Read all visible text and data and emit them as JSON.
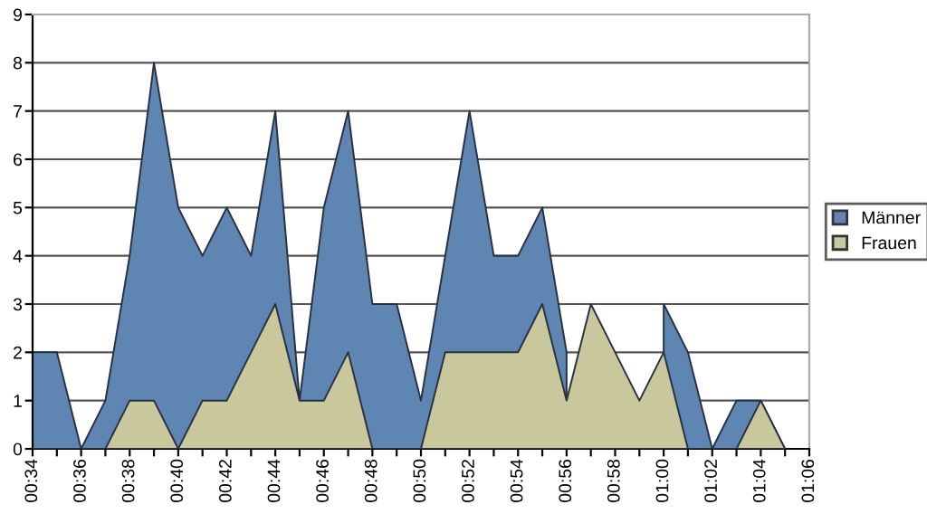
{
  "chart_data": {
    "type": "area",
    "categories": [
      "00:34",
      null,
      "00:36",
      null,
      "00:38",
      null,
      "00:40",
      null,
      "00:42",
      null,
      "00:44",
      null,
      "00:46",
      null,
      "00:48",
      null,
      "00:50",
      null,
      "00:52",
      null,
      "00:54",
      null,
      "00:56",
      null,
      "00:58",
      null,
      "01:00",
      null,
      "01:02",
      null,
      "01:04",
      null,
      "01:06"
    ],
    "series": [
      {
        "name": "Männer",
        "color": "#5f86b3",
        "values": [
          2,
          2,
          0,
          1,
          4,
          8,
          5,
          4,
          5,
          4,
          7,
          1,
          5,
          7,
          3,
          3,
          1,
          4,
          7,
          4,
          4,
          5,
          2,
          null,
          null,
          null,
          3,
          2,
          0,
          1,
          1,
          0,
          null
        ]
      },
      {
        "name": "Frauen",
        "color": "#c9c89c",
        "values": [
          0,
          0,
          0,
          0,
          1,
          1,
          0,
          1,
          1,
          2,
          3,
          1,
          1,
          2,
          0,
          0,
          0,
          2,
          2,
          2,
          2,
          3,
          1,
          3,
          2,
          1,
          2,
          0,
          0,
          0,
          1,
          0,
          null
        ]
      }
    ],
    "ylim": [
      0,
      9
    ],
    "yticks": [
      0,
      1,
      2,
      3,
      4,
      5,
      6,
      7,
      8,
      9
    ],
    "grid": "y",
    "legend": "right"
  }
}
